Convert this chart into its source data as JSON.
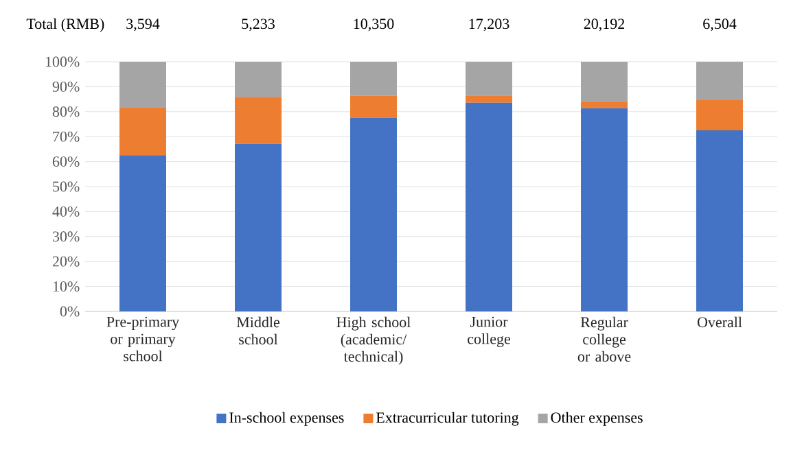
{
  "chart_data": {
    "type": "bar",
    "stacked": true,
    "categories": [
      "Pre-primary or primary school",
      "Middle school",
      "High school (academic/ technical)",
      "Junior college",
      "Regular college or above",
      "Overall"
    ],
    "series": [
      {
        "name": "In-school expenses",
        "color": "#4472c4",
        "values": [
          62.6,
          67.1,
          77.6,
          83.6,
          81.4,
          72.5
        ]
      },
      {
        "name": "Extracurricular tutoring",
        "color": "#ed7d31",
        "values": [
          19.2,
          18.8,
          8.7,
          2.9,
          2.8,
          12.1
        ]
      },
      {
        "name": "Other expenses",
        "color": "#a5a5a5",
        "values": [
          18.2,
          14.1,
          13.7,
          13.5,
          15.8,
          15.4
        ]
      }
    ],
    "annotations": [
      "Total (RMB)",
      "3,594",
      "5,233",
      "10,350",
      "17,203",
      "20,192",
      "6,504"
    ],
    "ylim": [
      0,
      100
    ],
    "yticks": [
      {
        "value": 0,
        "label": "0%"
      },
      {
        "value": 10,
        "label": "10%"
      },
      {
        "value": 20,
        "label": "20%"
      },
      {
        "value": 30,
        "label": "30%"
      },
      {
        "value": 40,
        "label": "40%"
      },
      {
        "value": 50,
        "label": "50%"
      },
      {
        "value": 60,
        "label": "60%"
      },
      {
        "value": 70,
        "label": "70%"
      },
      {
        "value": 80,
        "label": "80%"
      },
      {
        "value": 90,
        "label": "90%"
      },
      {
        "value": 100,
        "label": "100%"
      }
    ],
    "grid": "y",
    "legend": "bottom"
  }
}
